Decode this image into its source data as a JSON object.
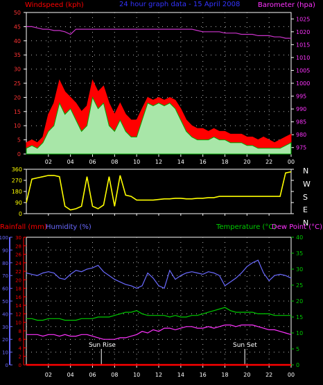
{
  "header": {
    "windspeed_label": "Windspeed (kph)",
    "graph_title": "24 hour graph data - 15 April 2008",
    "barometer_label": "Barometer (hpa)"
  },
  "lower_header": {
    "rainfall_label": "Rainfall (mm)",
    "humidity_label": "Humidity (%)",
    "temperature_label": "Temperature (°C)",
    "dewpoint_label": "Dew Point (°C)"
  },
  "annotations": {
    "sunrise": "Sun Rise",
    "sunset": "Sun Set"
  },
  "compass": [
    "N",
    "W",
    "S",
    "E",
    "N"
  ],
  "colors": {
    "windspeed": "#ff0000",
    "gust_fill": "#a8e6a8",
    "barometer": "#cc33cc",
    "wind_dir": "#ffff00",
    "rainfall": "#ff0000",
    "humidity": "#6a6aff",
    "temperature": "#00cc00",
    "dewpoint": "#ff33ff",
    "axis": "#ffffff",
    "grid": "#bbbbbb"
  },
  "chart_data": [
    {
      "type": "area",
      "name": "windspeed-barometer",
      "x_ticks": [
        "02",
        "04",
        "06",
        "08",
        "10",
        "12",
        "14",
        "16",
        "18",
        "20",
        "22",
        "00"
      ],
      "y_left_ticks": [
        0,
        5,
        10,
        15,
        20,
        25,
        30,
        35,
        40,
        45,
        50
      ],
      "y_right_ticks": [
        975,
        980,
        985,
        990,
        995,
        1000,
        1005,
        1010,
        1015,
        1020,
        1025
      ],
      "ylim_left": [
        0,
        50
      ],
      "ylim_right": [
        972.5,
        1027.5
      ],
      "hours": [
        0,
        0.5,
        1,
        1.5,
        2,
        2.5,
        3,
        3.5,
        4,
        4.5,
        5,
        5.5,
        6,
        6.5,
        7,
        7.5,
        8,
        8.5,
        9,
        9.5,
        10,
        10.5,
        11,
        11.5,
        12,
        12.5,
        13,
        13.5,
        14,
        14.5,
        15,
        15.5,
        16,
        16.5,
        17,
        17.5,
        18,
        18.5,
        19,
        19.5,
        20,
        20.5,
        21,
        21.5,
        22,
        22.5,
        23,
        23.5,
        24
      ],
      "series": [
        {
          "name": "Windspeed (kph)",
          "axis": "left",
          "values": [
            2,
            3,
            2,
            4,
            8,
            10,
            18,
            14,
            16,
            12,
            8,
            10,
            20,
            16,
            18,
            10,
            8,
            12,
            8,
            6,
            6,
            12,
            18,
            17,
            18,
            17,
            18,
            16,
            12,
            8,
            6,
            5,
            5,
            5,
            6,
            5,
            5,
            4,
            4,
            4,
            3,
            3,
            2,
            2,
            2,
            2,
            2,
            3,
            4
          ]
        },
        {
          "name": "gust",
          "axis": "left",
          "values": [
            4,
            5,
            4,
            6,
            14,
            18,
            26,
            22,
            20,
            18,
            15,
            17,
            26,
            22,
            24,
            18,
            14,
            18,
            14,
            12,
            12,
            16,
            20,
            19,
            20,
            19,
            20,
            19,
            16,
            12,
            10,
            9,
            9,
            8,
            9,
            8,
            8,
            7,
            7,
            7,
            6,
            6,
            5,
            6,
            5,
            4,
            5,
            6,
            7
          ]
        },
        {
          "name": "Barometer (hpa)",
          "axis": "right",
          "values": [
            1022,
            1022,
            1021.5,
            1021,
            1021,
            1020.5,
            1020.5,
            1020,
            1019,
            1021,
            1021,
            1021,
            1021,
            1021,
            1021,
            1021,
            1021,
            1021,
            1021,
            1021,
            1021,
            1021,
            1021,
            1021,
            1021,
            1021,
            1021,
            1021,
            1021,
            1021,
            1021,
            1020.5,
            1020,
            1020,
            1020,
            1020,
            1019.5,
            1019.5,
            1019.5,
            1019,
            1019,
            1019,
            1018.5,
            1018.5,
            1018.5,
            1018,
            1018,
            1017.5,
            1017.5
          ]
        }
      ]
    },
    {
      "type": "line",
      "name": "wind-direction",
      "y_ticks": [
        0,
        90,
        180,
        270,
        360
      ],
      "ylim": [
        0,
        360
      ],
      "hours": [
        0,
        0.5,
        1,
        1.5,
        2,
        2.5,
        3,
        3.5,
        4,
        4.5,
        5,
        5.5,
        6,
        6.5,
        7,
        7.5,
        8,
        8.5,
        9,
        9.5,
        10,
        10.5,
        11,
        11.5,
        12,
        12.5,
        13,
        13.5,
        14,
        14.5,
        15,
        15.5,
        16,
        16.5,
        17,
        17.5,
        18,
        18.5,
        19,
        19.5,
        20,
        20.5,
        21,
        21.5,
        22,
        22.5,
        23,
        23.5,
        24
      ],
      "values": [
        90,
        280,
        290,
        300,
        310,
        310,
        300,
        60,
        30,
        40,
        60,
        300,
        60,
        40,
        70,
        300,
        60,
        310,
        150,
        140,
        110,
        110,
        110,
        110,
        115,
        120,
        120,
        125,
        125,
        120,
        120,
        125,
        125,
        130,
        130,
        140,
        140,
        140,
        140,
        140,
        140,
        140,
        140,
        140,
        140,
        140,
        140,
        330,
        340
      ]
    },
    {
      "type": "line",
      "name": "rain-humidity-temperature",
      "x_ticks": [
        "02",
        "04",
        "06",
        "08",
        "10",
        "12",
        "14",
        "16",
        "18",
        "20",
        "22",
        "00"
      ],
      "rain_ticks": [
        0,
        2,
        4,
        6,
        8,
        10,
        12,
        14,
        16,
        18,
        20,
        22,
        24,
        26,
        28,
        30
      ],
      "humidity_ticks": [
        0,
        10,
        20,
        30,
        40,
        50,
        60,
        70,
        80,
        90,
        100
      ],
      "temp_ticks": [
        0,
        5,
        10,
        15,
        20,
        25,
        30,
        35,
        40
      ],
      "ylim_humidity": [
        0,
        100
      ],
      "ylim_temp": [
        0,
        40
      ],
      "hours": [
        0,
        0.5,
        1,
        1.5,
        2,
        2.5,
        3,
        3.5,
        4,
        4.5,
        5,
        5.5,
        6,
        6.5,
        7,
        7.5,
        8,
        8.5,
        9,
        9.5,
        10,
        10.5,
        11,
        11.5,
        12,
        12.5,
        13,
        13.5,
        14,
        14.5,
        15,
        15.5,
        16,
        16.5,
        17,
        17.5,
        18,
        18.5,
        19,
        19.5,
        20,
        20.5,
        21,
        21.5,
        22,
        22.5,
        23,
        23.5,
        24
      ],
      "series": [
        {
          "name": "Rainfall (mm)",
          "axis": "humidity",
          "values": [
            0,
            0,
            0,
            0,
            0,
            0,
            0,
            0,
            0,
            0,
            0,
            0,
            0,
            0,
            0,
            0,
            0,
            0,
            0,
            0,
            0,
            0,
            0,
            0,
            0,
            0,
            0,
            0,
            0,
            0,
            0,
            0,
            0,
            0,
            0,
            0,
            0,
            0,
            0,
            0,
            0,
            0,
            0,
            0,
            0,
            0,
            0,
            0,
            0
          ]
        },
        {
          "name": "Humidity (%)",
          "axis": "humidity",
          "values": [
            72,
            71,
            70,
            72,
            73,
            72,
            68,
            67,
            71,
            74,
            73,
            75,
            76,
            78,
            73,
            70,
            67,
            65,
            63,
            62,
            60,
            62,
            72,
            68,
            62,
            60,
            74,
            67,
            70,
            72,
            73,
            72,
            71,
            73,
            72,
            70,
            62,
            65,
            68,
            72,
            77,
            80,
            82,
            72,
            66,
            70,
            71,
            70,
            68
          ]
        },
        {
          "name": "Temperature (°C)",
          "axis": "temp",
          "values": [
            14.5,
            14.5,
            14,
            14,
            14.5,
            14.5,
            14.5,
            14,
            14,
            14,
            14.5,
            14.5,
            14.5,
            15,
            15,
            15,
            15.5,
            16,
            16.5,
            16.5,
            17,
            16,
            15.5,
            15.5,
            15.5,
            15.5,
            15,
            15.5,
            15,
            15,
            15.5,
            15.5,
            16,
            16.5,
            17,
            17.5,
            18,
            17,
            16.5,
            16.5,
            16.5,
            16.5,
            16,
            16,
            16,
            15.5,
            15.5,
            15.5,
            15.5
          ]
        },
        {
          "name": "Dew Point (°C)",
          "axis": "temp",
          "values": [
            9.5,
            9.5,
            9.5,
            9,
            9.5,
            9.5,
            9,
            9.5,
            9,
            9,
            9.5,
            9.5,
            9,
            8.5,
            8,
            8,
            8,
            8.5,
            8.5,
            9,
            9.5,
            10.5,
            10,
            11,
            10.5,
            11.5,
            11.5,
            11,
            11.5,
            12,
            12,
            11.5,
            11.5,
            12,
            11.5,
            12,
            12.5,
            12.5,
            12,
            12.5,
            12.5,
            12.5,
            12,
            11.5,
            11,
            11,
            10.5,
            10,
            9.5
          ]
        }
      ]
    }
  ]
}
